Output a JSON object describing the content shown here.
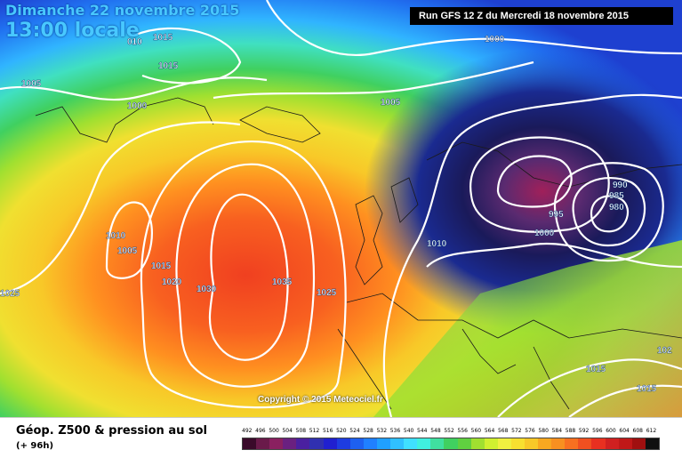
{
  "header": {
    "date_title": "Dimanche 22 novembre 2015",
    "time_title": "13:00 locale",
    "run_banner": "Run GFS 12 Z du Mercredi 18 novembre 2015"
  },
  "map": {
    "copyright": "Copyright © 2015 Meteociel.fr",
    "isobar_labels": [
      "1015",
      "1005",
      "1000",
      "1015",
      "010",
      "1000",
      "1005",
      "1010",
      "1005",
      "1015",
      "1020",
      "1030",
      "1035",
      "1025",
      "1025",
      "990",
      "985",
      "980",
      "995",
      "1000",
      "1010",
      "1015",
      "1015",
      "102"
    ],
    "colors": {
      "deep_low": "#1a1a5a",
      "low_core": "#a0205a",
      "blue": "#1e3cc8",
      "cyan": "#30b4ff",
      "green": "#40d060",
      "yellow": "#f0e030",
      "orange": "#ff9020",
      "red": "#f04020",
      "isobar": "#ffffff"
    }
  },
  "footer": {
    "title": "Géop. Z500 & pression au sol",
    "subtitle": "(+ 96h)",
    "scale_values": [
      "492",
      "496",
      "500",
      "504",
      "508",
      "512",
      "516",
      "520",
      "524",
      "528",
      "532",
      "536",
      "540",
      "544",
      "548",
      "552",
      "556",
      "560",
      "564",
      "568",
      "572",
      "576",
      "580",
      "584",
      "588",
      "592",
      "596",
      "600",
      "604",
      "608",
      "612"
    ],
    "scale_colors": [
      "#3a0a2a",
      "#6a1a4a",
      "#8a2060",
      "#6a2080",
      "#4a20a0",
      "#3030b0",
      "#2020d0",
      "#1e3ce0",
      "#1e60f0",
      "#2080ff",
      "#20a0ff",
      "#30c0ff",
      "#40e0ff",
      "#40f0e0",
      "#40e0a0",
      "#40d060",
      "#60d040",
      "#a0e030",
      "#d0f030",
      "#f0f040",
      "#f8e030",
      "#f8c828",
      "#f8a820",
      "#f89020",
      "#f87020",
      "#f05020",
      "#e83020",
      "#d02020",
      "#c01818",
      "#a01010",
      "#101010"
    ]
  }
}
